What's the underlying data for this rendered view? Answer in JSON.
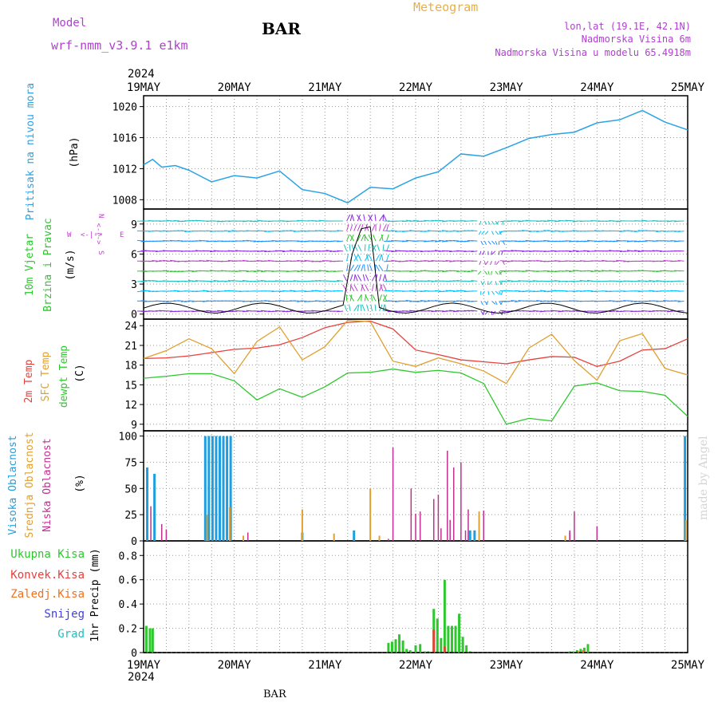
{
  "header": {
    "model_label": "Model",
    "model_name": "wrf-nmm_v3.9.1 e1km",
    "station": "BAR",
    "title": "Meteogram",
    "coords": "lon,lat (19.1E, 42.1N)",
    "elevation": "Nadmorska Visina 6m",
    "model_elevation": "Nadmorska Visina u modelu 65.4918m",
    "year_top": "2024",
    "year_bottom": "2024",
    "footer_station": "BAR",
    "watermark": "made by Angel"
  },
  "colors": {
    "pressure": "#29a3e6",
    "wind_label": "#2ec82e",
    "wind_unit": "#000000",
    "compass": "#c040d0",
    "temp2m": "#e8403c",
    "sfc": "#e0a030",
    "dewpt": "#2ec82e",
    "high_cloud": "#1f9ee0",
    "mid_cloud": "#e0a030",
    "low_cloud": "#c03090",
    "total_precip": "#2ec82e",
    "conv_precip": "#e8403c",
    "frz_precip": "#f07020",
    "snow": "#4040e0",
    "hail": "#20c0c0",
    "header_purple": "#b040d0",
    "title_gold": "#e8b040"
  },
  "x_axis": {
    "ticks": [
      "19MAY",
      "20MAY",
      "21MAY",
      "22MAY",
      "23MAY",
      "24MAY",
      "25MAY"
    ]
  },
  "panels": {
    "pressure": {
      "ylabel_main": "Pritisak na nivou mora",
      "unit": "(hPa)",
      "yticks": [
        "1008",
        "1012",
        "1016",
        "1020"
      ]
    },
    "wind": {
      "ylabel_main": "10m Vjetar",
      "ylabel_sub": "Brzina i Pravac",
      "unit": "(m/s)",
      "yticks": [
        "0",
        "3",
        "6",
        "9"
      ],
      "compass_n": "N",
      "compass_s": "S",
      "compass_w": "W",
      "compass_e": "E",
      "compass_arrow_v": "<-|->",
      "compass_arrow_h": "<-|->"
    },
    "temp": {
      "label_2m": "2m Temp",
      "label_sfc": "SFC Temp",
      "label_dew": "dewpt Temp",
      "unit": "(C)",
      "yticks": [
        "9",
        "12",
        "15",
        "18",
        "21",
        "24"
      ]
    },
    "cloud": {
      "label_high": "Visoka Oblacnost",
      "label_mid": "Srednja Oblacnost",
      "label_low": "Niska Oblacnost",
      "unit": "(%)",
      "yticks": [
        "0",
        "25",
        "50",
        "75",
        "100"
      ]
    },
    "precip": {
      "ylabel_main": "1hr Precip (mm)",
      "yticks": [
        "0",
        "0.2",
        "0.4",
        "0.6",
        "0.8"
      ],
      "legend": [
        "Ukupna Kisa",
        "Konvek.Kisa",
        "Zaledj.Kisa",
        "Snijeg",
        "Grad"
      ]
    }
  },
  "chart_data": [
    {
      "type": "line",
      "name": "pressure",
      "ylim": [
        1006.8,
        1021.4
      ],
      "x": [
        0,
        0.1,
        0.2,
        0.35,
        0.5,
        0.75,
        1.0,
        1.25,
        1.5,
        1.75,
        2.0,
        2.25,
        2.5,
        2.75,
        3.0,
        3.25,
        3.5,
        3.75,
        4.0,
        4.25,
        4.5,
        4.75,
        5.0,
        5.25,
        5.5,
        5.75,
        6.0
      ],
      "y": [
        1012.5,
        1013.2,
        1012.2,
        1012.4,
        1011.8,
        1010.3,
        1011.1,
        1010.8,
        1011.7,
        1009.3,
        1008.8,
        1007.6,
        1009.6,
        1009.4,
        1010.8,
        1011.6,
        1013.9,
        1013.6,
        1014.7,
        1015.9,
        1016.4,
        1016.7,
        1017.9,
        1018.3,
        1019.5,
        1018.0,
        1017.0
      ]
    },
    {
      "type": "line",
      "name": "temperature",
      "ylim": [
        8,
        25
      ],
      "x": [
        0,
        0.25,
        0.5,
        0.75,
        1.0,
        1.25,
        1.5,
        1.75,
        2.0,
        2.25,
        2.5,
        2.75,
        3.0,
        3.25,
        3.5,
        3.75,
        4.0,
        4.25,
        4.5,
        4.75,
        5.0,
        5.25,
        5.5,
        5.75,
        6.0
      ],
      "series": [
        {
          "name": "2m Temp",
          "values": [
            19,
            19.1,
            19.4,
            19.9,
            20.4,
            20.6,
            21.1,
            22.2,
            23.7,
            24.5,
            24.7,
            23.5,
            20.3,
            19.6,
            18.8,
            18.5,
            18.2,
            18.8,
            19.3,
            19.2,
            17.8,
            18.6,
            20.3,
            20.5,
            22.0
          ]
        },
        {
          "name": "SFC Temp",
          "values": [
            19,
            20.2,
            22.0,
            20.5,
            16.7,
            21.6,
            23.8,
            18.8,
            20.8,
            24.8,
            24.6,
            18.6,
            17.8,
            19.1,
            18.2,
            17.1,
            15.2,
            20.6,
            22.7,
            18.7,
            15.7,
            21.7,
            22.8,
            17.5,
            16.5
          ]
        },
        {
          "name": "dewpt Temp",
          "values": [
            16.0,
            16.3,
            16.7,
            16.7,
            15.6,
            12.7,
            14.4,
            13.1,
            14.7,
            16.8,
            16.9,
            17.4,
            16.9,
            17.2,
            16.8,
            15.2,
            9.0,
            9.9,
            9.5,
            14.8,
            15.3,
            14.1,
            14.0,
            13.4,
            10.2
          ]
        }
      ]
    },
    {
      "type": "bar",
      "name": "cloud_cover",
      "ylim": [
        0,
        105
      ],
      "series": [
        {
          "name": "Visoka Oblacnost",
          "x": [
            0.04,
            0.12,
            0.68,
            0.72,
            0.76,
            0.8,
            0.84,
            0.88,
            0.92,
            0.96,
            1.75,
            2.32,
            3.6,
            3.65,
            5.97
          ],
          "values": [
            70,
            64,
            100,
            100,
            100,
            100,
            100,
            100,
            100,
            100,
            8,
            10,
            10,
            10,
            100
          ]
        },
        {
          "name": "Srednja Oblacnost",
          "x": [
            0.7,
            0.95,
            1.1,
            1.75,
            2.1,
            2.5,
            2.6,
            3.7,
            4.65,
            4.7,
            5.98
          ],
          "values": [
            25,
            32,
            5,
            30,
            7,
            50,
            5,
            28,
            5,
            8,
            20
          ]
        },
        {
          "name": "Niska Oblacnost",
          "x": [
            0.08,
            0.2,
            0.25,
            1.15,
            2.7,
            2.75,
            2.95,
            3.0,
            3.05,
            3.2,
            3.25,
            3.28,
            3.35,
            3.38,
            3.42,
            3.5,
            3.55,
            3.58,
            3.75,
            4.75,
            4.7,
            5.0
          ],
          "values": [
            33,
            16,
            11,
            8,
            2,
            89,
            50,
            26,
            28,
            40,
            44,
            12,
            86,
            20,
            70,
            75,
            10,
            30,
            29,
            28,
            10,
            14
          ]
        }
      ]
    },
    {
      "type": "bar",
      "name": "precipitation",
      "ylim": [
        0,
        0.92
      ],
      "series": [
        {
          "name": "Ukupna Kisa",
          "x": [
            0.03,
            0.07,
            0.1,
            2.7,
            2.74,
            2.78,
            2.82,
            2.86,
            2.9,
            2.94,
            3.0,
            3.05,
            3.1,
            3.14,
            3.2,
            3.24,
            3.28,
            3.32,
            3.36,
            3.4,
            3.44,
            3.48,
            3.52,
            3.56,
            3.6,
            4.7,
            4.74,
            4.78,
            4.82,
            4.86,
            4.9
          ],
          "values": [
            0.22,
            0.2,
            0.2,
            0.08,
            0.09,
            0.11,
            0.15,
            0.1,
            0.03,
            0.02,
            0.06,
            0.07,
            0.01,
            0.01,
            0.36,
            0.28,
            0.12,
            0.6,
            0.22,
            0.22,
            0.22,
            0.32,
            0.13,
            0.06,
            0.01,
            0.01,
            0.01,
            0.02,
            0.03,
            0.04,
            0.07
          ]
        },
        {
          "name": "Konvek.Kisa",
          "x": [
            3.2,
            3.32
          ],
          "values": [
            0.19,
            0.05
          ]
        },
        {
          "name": "Zaledj.Kisa",
          "x": [
            4.8,
            4.85
          ],
          "values": [
            0.01,
            0.02
          ]
        },
        {
          "name": "Snijeg",
          "x": [],
          "values": []
        },
        {
          "name": "Grad",
          "x": [],
          "values": []
        }
      ]
    },
    {
      "type": "scatter",
      "name": "wind",
      "ylim": [
        -0.5,
        10.5
      ]
    }
  ]
}
